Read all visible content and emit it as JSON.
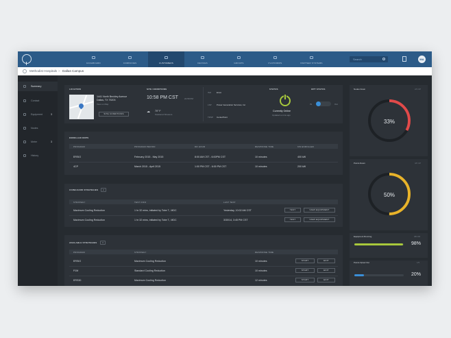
{
  "nav": {
    "avatar": "MA",
    "search_placeholder": "Search",
    "tabs": [
      {
        "label": "Dashboard"
      },
      {
        "label": "Companies"
      },
      {
        "label": "Customers"
      },
      {
        "label": "Devices"
      },
      {
        "label": "Groups"
      },
      {
        "label": "Platforms"
      },
      {
        "label": "Partner Systems"
      }
    ],
    "active_tab": 2
  },
  "breadcrumb": {
    "parent": "Methodist Hospitals",
    "separator": ">",
    "current": "Dallas Campus"
  },
  "sidebar": {
    "items": [
      {
        "label": "Summary",
        "badge": ""
      },
      {
        "label": "Contact",
        "badge": ""
      },
      {
        "label": "Equipment",
        "badge": "3"
      },
      {
        "label": "Nodes",
        "badge": ""
      },
      {
        "label": "Meter",
        "badge": "3"
      },
      {
        "label": "History",
        "badge": ""
      }
    ],
    "active": 0
  },
  "location": {
    "label": "Location",
    "address_line1": "1441 North Beckley Avenue",
    "address_line2": "Dallas, TX 75203",
    "link": "View on Map"
  },
  "site_conditions": {
    "label": "Site Conditions",
    "time": "10:58 PM CST",
    "date": "22:58 PM",
    "temp": "70° F",
    "weather": "Scattered Showers",
    "button": "Site Conditions"
  },
  "info": {
    "rows": [
      {
        "key": "ISO",
        "value": "Ercot"
      },
      {
        "key": "LSP",
        "value": "Power Generation Services, Inc"
      },
      {
        "key": "TDSP",
        "value": "CenterPoint"
      }
    ]
  },
  "status": {
    "label": "Status",
    "state": "Currently Online",
    "sub": "Updated a mins ago"
  },
  "opt_status": {
    "label": "Opt Status",
    "left": "IN",
    "right": "Out"
  },
  "enrolled": {
    "title": "Enrolled DRPs",
    "headers": [
      "Program",
      "Program Period",
      "DR Hour",
      "Response Time",
      "KW Enrolled"
    ],
    "rows": [
      [
        "ERSIO",
        "February 2015 - May 2015",
        "8:00 AM CST - 6:00PM CST",
        "10 minutes",
        "400 kW"
      ],
      [
        "4CP",
        "March 2015 - April 2015",
        "1:00 PM CST - 6:00 PM CST",
        "10 minutes",
        "200 kW"
      ]
    ]
  },
  "coinguard": {
    "title": "Coinguard Strategies",
    "count": "2",
    "headers": [
      "Strategy",
      "Test Info",
      "Last Test"
    ],
    "rows": [
      [
        "Maximum Cooling Reduction",
        "1 hr 32 mins, initiated by Tobe T., MDC",
        "Yesterday, 10:02 AM CST"
      ],
      [
        "Maximum Cooling Reduction",
        "1 hr 32 mins, initiated by Tobe T., MDC",
        "3/30/14, 3:45 PM CST"
      ]
    ],
    "btn_test": "Test",
    "btn_view": "View Equipment"
  },
  "available": {
    "title": "Available Strategies",
    "count": "3",
    "headers": [
      "Program",
      "Strategy",
      "Response Time"
    ],
    "rows": [
      [
        "ERSIO",
        "Maximum Cooling Reduction",
        "10 minutes"
      ],
      [
        "PJM",
        "Standard Cooling Reduction",
        "10 minutes"
      ],
      [
        "ERS30",
        "Maximum Cooling Reduction",
        "12 minutes"
      ]
    ],
    "btn_start": "Start",
    "btn_edit": "Edit"
  },
  "widgets": {
    "nodes_down": {
      "label": "Nodes Down",
      "value": "33%",
      "fraction": 0.33,
      "color": "#e14a4a",
      "corner": "2/3 UP"
    },
    "points_down": {
      "label": "Points Down",
      "value": "50%",
      "fraction": 0.5,
      "color": "#e8b32a",
      "corner": "3/6 UP"
    },
    "equipment_running": {
      "label": "Equipment Running",
      "value": "98%",
      "fraction": 0.98,
      "color": "#a8c93c",
      "corner": "98/100"
    },
    "points_opted_out": {
      "label": "Points Opted Out",
      "value": "20%",
      "fraction": 0.2,
      "color": "#3a8fd8",
      "corner": "1/5"
    }
  }
}
